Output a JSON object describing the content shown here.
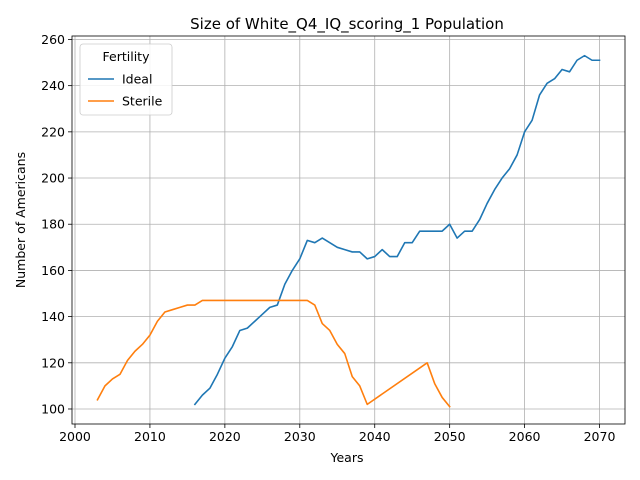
{
  "chart_data": {
    "type": "line",
    "title": "Size of White_Q4_IQ_scoring_1 Population",
    "xlabel": "Years",
    "ylabel": "Number of Americans",
    "xlim": [
      1999.6,
      2073.4
    ],
    "ylim": [
      93.5,
      261.5
    ],
    "xticks": [
      2000,
      2010,
      2020,
      2030,
      2040,
      2050,
      2060,
      2070
    ],
    "yticks": [
      100,
      120,
      140,
      160,
      180,
      200,
      220,
      240,
      260
    ],
    "grid": true,
    "legend": {
      "title": "Fertility",
      "placement": "top-left"
    },
    "series": [
      {
        "name": "Ideal",
        "color": "#1f77b4",
        "x": [
          2016,
          2017,
          2018,
          2019,
          2020,
          2021,
          2022,
          2023,
          2024,
          2025,
          2026,
          2027,
          2028,
          2029,
          2030,
          2031,
          2032,
          2033,
          2034,
          2035,
          2036,
          2037,
          2038,
          2039,
          2040,
          2041,
          2042,
          2043,
          2044,
          2045,
          2046,
          2047,
          2048,
          2049,
          2050,
          2051,
          2052,
          2053,
          2054,
          2055,
          2056,
          2057,
          2058,
          2059,
          2060,
          2061,
          2062,
          2063,
          2064,
          2065,
          2066,
          2067,
          2068,
          2069,
          2070
        ],
        "y": [
          102,
          106,
          109,
          115,
          122,
          127,
          134,
          135,
          138,
          141,
          144,
          145,
          154,
          160,
          165,
          173,
          172,
          174,
          172,
          170,
          169,
          168,
          168,
          165,
          166,
          169,
          166,
          166,
          172,
          172,
          177,
          177,
          177,
          177,
          180,
          174,
          177,
          177,
          182,
          189,
          195,
          200,
          204,
          210,
          220,
          225,
          236,
          241,
          243,
          247,
          246,
          251,
          253,
          251,
          251
        ]
      },
      {
        "name": "Sterile",
        "color": "#ff7f0e",
        "x": [
          2003,
          2004,
          2005,
          2006,
          2007,
          2008,
          2009,
          2010,
          2011,
          2012,
          2013,
          2014,
          2015,
          2016,
          2017,
          2018,
          2019,
          2020,
          2021,
          2022,
          2023,
          2024,
          2025,
          2026,
          2027,
          2028,
          2029,
          2030,
          2031,
          2032,
          2033,
          2034,
          2035,
          2036,
          2037,
          2038,
          2039,
          2047,
          2048,
          2049,
          2050
        ],
        "y": [
          104,
          110,
          113,
          115,
          121,
          125,
          128,
          132,
          138,
          142,
          143,
          144,
          145,
          145,
          147,
          147,
          147,
          147,
          147,
          147,
          147,
          147,
          147,
          147,
          147,
          147,
          147,
          147,
          147,
          145,
          137,
          134,
          128,
          124,
          114,
          110,
          102,
          120,
          111,
          105,
          101
        ]
      }
    ]
  }
}
